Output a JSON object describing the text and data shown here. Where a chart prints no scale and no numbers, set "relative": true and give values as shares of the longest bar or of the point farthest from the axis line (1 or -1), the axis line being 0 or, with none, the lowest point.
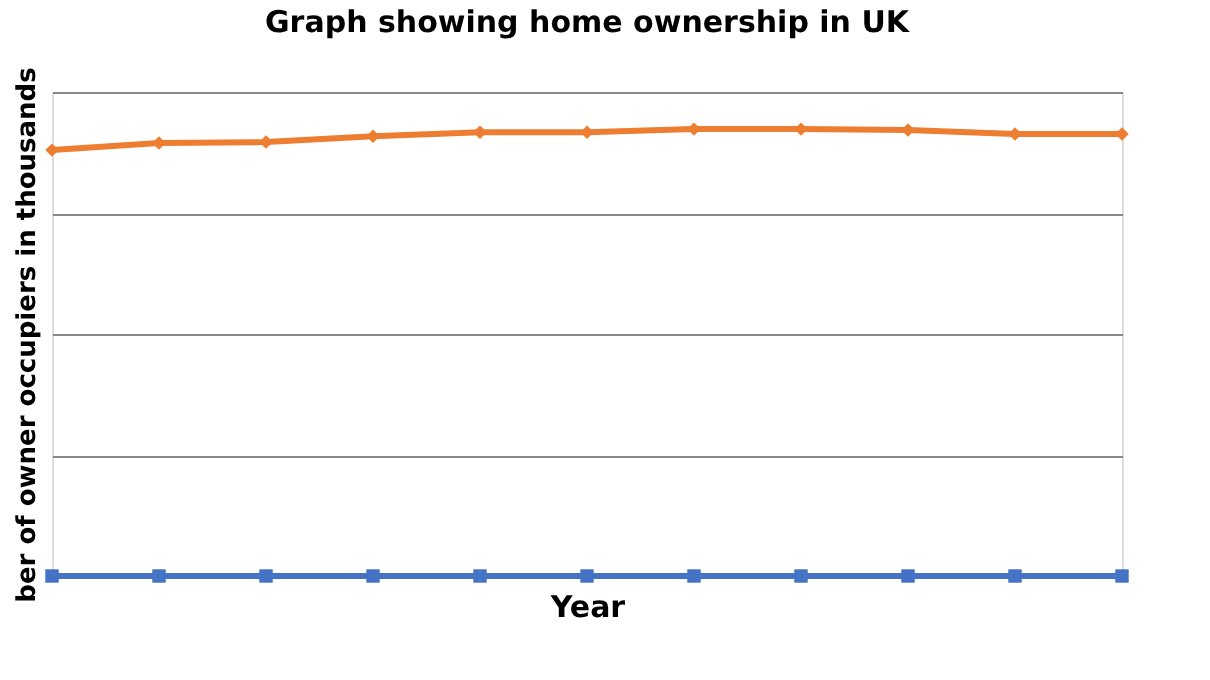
{
  "chart_data": {
    "type": "line",
    "title": "Graph showing home ownership in UK",
    "xlabel": "Year",
    "ylabel": "ber of owner occupiers in thousands",
    "relative": true,
    "grid": "y",
    "legend": false,
    "categories": [
      null,
      null,
      null,
      null,
      null,
      null,
      null,
      null,
      null,
      null,
      null
    ],
    "series": [
      {
        "color": "#4472c4",
        "marker": "square",
        "values": [
          0,
          0,
          0,
          0,
          0,
          0,
          0,
          0,
          0,
          0,
          0
        ]
      },
      {
        "color": "#ed7d31",
        "marker": "diamond",
        "values": [
          0.953,
          0.969,
          0.971,
          0.984,
          0.993,
          0.993,
          1,
          1,
          0.998,
          0.989,
          0.989
        ]
      }
    ]
  }
}
